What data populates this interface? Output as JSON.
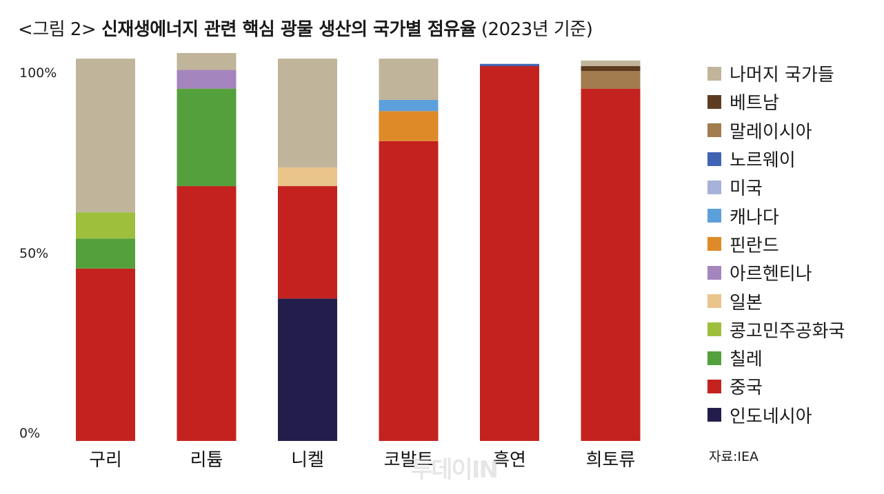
{
  "title": {
    "prefix": "<그림 2>",
    "main": "신재생에너지 관련 핵심 광물 생산의 국가별 점유율",
    "sub": "(2023년 기준)"
  },
  "source": "자료:IEA",
  "watermark": "투데이IN",
  "chart_data": {
    "type": "bar",
    "stacked": true,
    "title": "<그림 2> 신재생에너지 관련 핵심 광물 생산의 국가별 점유율 (2023년 기준)",
    "categories": [
      "구리",
      "리튬",
      "니켈",
      "코발트",
      "흑연",
      "희토류"
    ],
    "ylim": [
      0,
      100
    ],
    "ytick_labels": [
      "0%",
      "50%",
      "100%"
    ],
    "grid": false,
    "legend_position": "right",
    "series": [
      {
        "name": "인도네시아",
        "color": "#231d4c",
        "values": [
          0,
          0,
          38,
          0,
          0,
          0
        ]
      },
      {
        "name": "중국",
        "color": "#c4221f",
        "values": [
          46,
          68,
          30,
          80,
          100,
          94
        ]
      },
      {
        "name": "칠레",
        "color": "#54a03c",
        "values": [
          8,
          26,
          0,
          0,
          0,
          0
        ]
      },
      {
        "name": "콩고민주공화국",
        "color": "#9dbf3c",
        "values": [
          7,
          0,
          0,
          0,
          0,
          0
        ]
      },
      {
        "name": "일본",
        "color": "#e9c48b",
        "values": [
          0,
          0,
          5,
          0,
          0,
          0
        ]
      },
      {
        "name": "아르헨티나",
        "color": "#a585bd",
        "values": [
          0,
          5,
          0,
          0,
          0,
          0
        ]
      },
      {
        "name": "핀란드",
        "color": "#de8a28",
        "values": [
          0,
          0,
          0,
          8,
          0,
          0
        ]
      },
      {
        "name": "캐나다",
        "color": "#5ca0db",
        "values": [
          0,
          0,
          0,
          3,
          0,
          0
        ]
      },
      {
        "name": "미국",
        "color": "#a7b2d8",
        "values": [
          0,
          0,
          0,
          0,
          0,
          0
        ]
      },
      {
        "name": "노르웨이",
        "color": "#4163b4",
        "values": [
          0,
          0,
          0,
          0,
          0.6,
          0
        ]
      },
      {
        "name": "말레이시아",
        "color": "#a27b4e",
        "values": [
          0,
          0,
          0,
          0,
          0,
          4.7
        ]
      },
      {
        "name": "베트남",
        "color": "#5d3c22",
        "values": [
          0,
          0,
          0,
          0,
          0,
          1.3
        ]
      },
      {
        "name": "나머지 국가들",
        "color": "#c0b49a",
        "values": [
          41,
          4.5,
          29,
          11,
          0,
          1.5
        ]
      }
    ]
  }
}
